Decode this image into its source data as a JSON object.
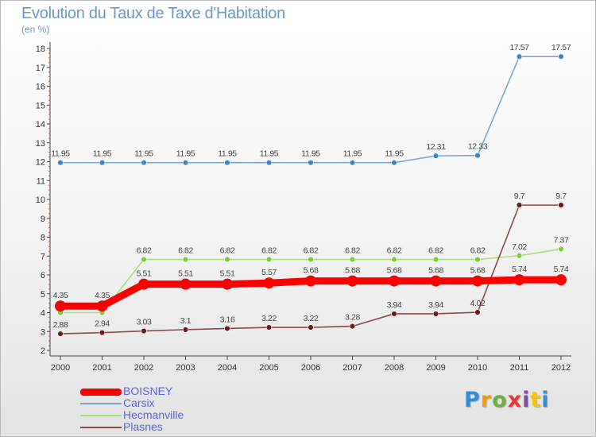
{
  "header": {
    "title": "Evolution du Taux de Taxe d'Habitation",
    "unit": "(en %)"
  },
  "chart_data": {
    "type": "line",
    "title": "Evolution du Taux de Taxe d'Habitation",
    "ylabel": "(en %)",
    "xlabel": "",
    "categories": [
      "2000",
      "2001",
      "2002",
      "2003",
      "2004",
      "2005",
      "2006",
      "2007",
      "2008",
      "2009",
      "2010",
      "2011",
      "2012"
    ],
    "yticks": [
      "2",
      "3",
      "4",
      "5",
      "6",
      "7",
      "8",
      "9",
      "10",
      "11",
      "12",
      "13",
      "14",
      "15",
      "16",
      "17",
      "18"
    ],
    "ylim": [
      2,
      18
    ],
    "grid": false,
    "legend_position": "bottom-left",
    "series": [
      {
        "name": "Carsix",
        "color": "#7aa6d6",
        "marker_color": "#3d86c6",
        "values": [
          11.95,
          11.95,
          11.95,
          11.95,
          11.95,
          11.95,
          11.95,
          11.95,
          11.95,
          12.31,
          12.33,
          17.57,
          17.57
        ],
        "labels": [
          "11.95",
          "11.95",
          "11.95",
          "11.95",
          "11.95",
          "11.95",
          "11.95",
          "11.95",
          "11.95",
          "12.31",
          "12.33",
          "17.57",
          "17.57"
        ]
      },
      {
        "name": "Hecmanville",
        "color": "#a6e07c",
        "marker_color": "#7ccc3e",
        "values": [
          4,
          4,
          6.82,
          6.82,
          6.82,
          6.82,
          6.82,
          6.82,
          6.82,
          6.82,
          6.82,
          7.02,
          7.37
        ],
        "labels": [
          "4",
          "4",
          "6.82",
          "6.82",
          "6.82",
          "6.82",
          "6.82",
          "6.82",
          "6.82",
          "6.82",
          "6.82",
          "7.02",
          "7.37"
        ]
      },
      {
        "name": "Plasnes",
        "color": "#8b4a4a",
        "marker_color": "#6a1c1c",
        "values": [
          2.88,
          2.94,
          3.03,
          3.1,
          3.16,
          3.22,
          3.22,
          3.28,
          3.94,
          3.94,
          4.02,
          9.7,
          9.7
        ],
        "labels": [
          "2.88",
          "2.94",
          "3.03",
          "3.1",
          "3.16",
          "3.22",
          "3.22",
          "3.28",
          "3.94",
          "3.94",
          "4.02",
          "9.7",
          "9.7"
        ]
      },
      {
        "name": "BOISNEY",
        "color": "#ff0000",
        "marker_color": "#ff0000",
        "values": [
          4.35,
          4.35,
          5.51,
          5.51,
          5.51,
          5.57,
          5.68,
          5.68,
          5.68,
          5.68,
          5.68,
          5.74,
          5.74
        ],
        "labels": [
          "4.35",
          "4.35",
          "5.51",
          "5.51",
          "5.51",
          "5.57",
          "5.68",
          "5.68",
          "5.68",
          "5.68",
          "5.68",
          "5.74",
          "5.74"
        ]
      }
    ]
  },
  "legend": {
    "items": [
      {
        "label": "BOISNEY",
        "color": "#ff0000",
        "thickness": 9
      },
      {
        "label": "Carsix",
        "color": "#7aa6d6",
        "thickness": 2
      },
      {
        "label": "Hecmanville",
        "color": "#a6e07c",
        "thickness": 2
      },
      {
        "label": "Plasnes",
        "color": "#8b4a4a",
        "thickness": 2
      }
    ]
  },
  "logo": {
    "letters": [
      "P",
      "r",
      "o",
      "x",
      "i",
      "t",
      "i"
    ],
    "colors": [
      "#2f8fd8",
      "#f39c12",
      "#6cb33e",
      "#e53935",
      "#8e44ad",
      "#f1c40f",
      "#2f8fd8"
    ]
  }
}
